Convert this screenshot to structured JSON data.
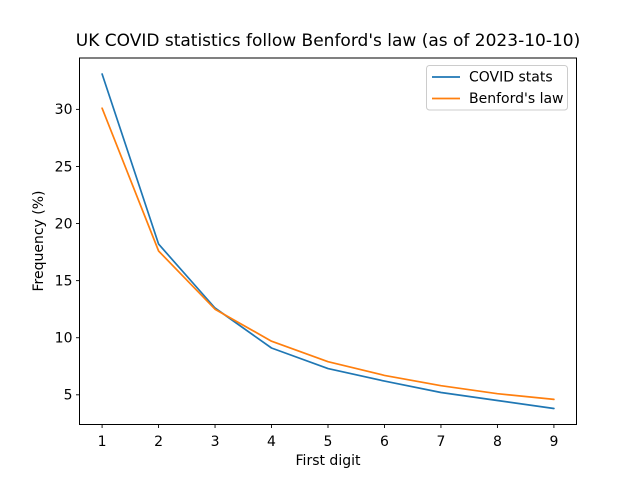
{
  "figure": {
    "title": "UK COVID statistics follow Benford's law (as of 2023-10-10)"
  },
  "chart_data": {
    "type": "line",
    "title": "UK COVID statistics follow Benford's law (as of 2023-10-10)",
    "xlabel": "First digit",
    "ylabel": "Frequency (%)",
    "x": [
      1,
      2,
      3,
      4,
      5,
      6,
      7,
      8,
      9
    ],
    "series": [
      {
        "name": "COVID stats",
        "color": "#1f77b4",
        "values": [
          33.1,
          18.2,
          12.6,
          9.1,
          7.3,
          6.2,
          5.2,
          4.5,
          3.8
        ]
      },
      {
        "name": "Benford's law",
        "color": "#ff7f0e",
        "values": [
          30.1,
          17.6,
          12.5,
          9.7,
          7.9,
          6.7,
          5.8,
          5.1,
          4.6
        ]
      }
    ],
    "xticks": [
      1,
      2,
      3,
      4,
      5,
      6,
      7,
      8,
      9
    ],
    "yticks": [
      5,
      10,
      15,
      20,
      25,
      30
    ],
    "xlim": [
      0.6,
      9.4
    ],
    "ylim": [
      2.4,
      34.5
    ],
    "grid": false,
    "legend_position": "upper right",
    "axes_edge_color": "#000000",
    "legend_edge_color": "#cccccc"
  }
}
